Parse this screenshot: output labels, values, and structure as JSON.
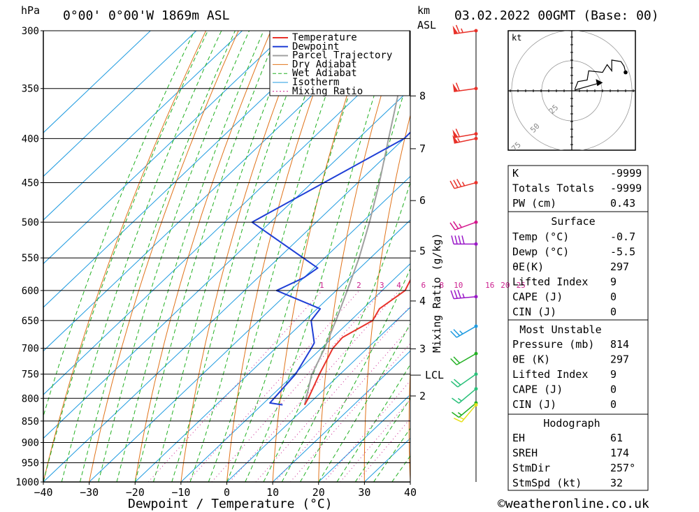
{
  "header": {
    "hpa_label": "hPa",
    "location": "0°00' 0°00'W  1869m  ASL",
    "km_label": "km",
    "asl_label": "ASL",
    "datetime": "03.02.2022  00GMT  (Base: 00)"
  },
  "footer": {
    "credit": "©weatheronline.co.uk"
  },
  "colors": {
    "temperature": "#e8322a",
    "dewpoint": "#1f3fd6",
    "parcel": "#a0a0a0",
    "dry_adiabat": "#e0731a",
    "wet_adiabat": "#22b022",
    "isotherm": "#1f9be0",
    "mixing_ratio": "#cc1f8f"
  },
  "chart_data": {
    "type": "skew-t",
    "xlabel": "Dewpoint / Temperature (°C)",
    "ylabel": "hPa",
    "xlim": [
      -40,
      40
    ],
    "ylim": [
      1000,
      300
    ],
    "x_ticks": [
      "−40",
      "−30",
      "−20",
      "−10",
      "0",
      "10",
      "20",
      "30",
      "40"
    ],
    "pressure_levels": [
      300,
      350,
      400,
      450,
      500,
      550,
      600,
      650,
      700,
      750,
      800,
      850,
      900,
      950,
      1000
    ],
    "km_ticks": [
      {
        "label": "8",
        "p": 357
      },
      {
        "label": "7",
        "p": 411
      },
      {
        "label": "6",
        "p": 472
      },
      {
        "label": "5",
        "p": 540
      },
      {
        "label": "4",
        "p": 617
      },
      {
        "label": "3",
        "p": 701
      },
      {
        "label": "2",
        "p": 795
      }
    ],
    "lcl": {
      "label": "LCL",
      "p": 752
    },
    "mixing_ratio_axis_label": "Mixing Ratio (g/kg)",
    "mixing_ratio_labels": [
      "1",
      "2",
      "3",
      "4",
      "6",
      "8",
      "10",
      "16",
      "20",
      "25"
    ],
    "mixing_ratio_values": [
      1,
      2,
      3,
      4,
      6,
      8,
      10,
      16,
      20,
      25
    ],
    "legend": [
      "Temperature",
      "Dewpoint",
      "Parcel Trajectory",
      "Dry Adiabat",
      "Wet Adiabat",
      "Isotherm",
      "Mixing Ratio"
    ],
    "temperature": [
      {
        "p": 814,
        "t": -0.7
      },
      {
        "p": 800,
        "t": -1.4
      },
      {
        "p": 750,
        "t": -4.5
      },
      {
        "p": 700,
        "t": -7.5
      },
      {
        "p": 680,
        "t": -7.9
      },
      {
        "p": 650,
        "t": -5.2
      },
      {
        "p": 630,
        "t": -6.4
      },
      {
        "p": 600,
        "t": -5.0
      },
      {
        "p": 580,
        "t": -6.5
      },
      {
        "p": 550,
        "t": -8.6
      },
      {
        "p": 500,
        "t": -13.8
      },
      {
        "p": 450,
        "t": -19.8
      },
      {
        "p": 400,
        "t": -26.6
      },
      {
        "p": 350,
        "t": -34.0
      },
      {
        "p": 300,
        "t": -43.2
      }
    ],
    "dewpoint": [
      {
        "p": 814,
        "t": -5.5
      },
      {
        "p": 810,
        "t": -8.7
      },
      {
        "p": 750,
        "t": -9.7
      },
      {
        "p": 700,
        "t": -12.2
      },
      {
        "p": 690,
        "t": -12.8
      },
      {
        "p": 650,
        "t": -18.6
      },
      {
        "p": 630,
        "t": -19.3
      },
      {
        "p": 600,
        "t": -33.0
      },
      {
        "p": 580,
        "t": -30.0
      },
      {
        "p": 565,
        "t": -29.2
      },
      {
        "p": 500,
        "t": -54.0
      },
      {
        "p": 400,
        "t": -40.0
      },
      {
        "p": 380,
        "t": -40.2
      },
      {
        "p": 350,
        "t": -44.5
      },
      {
        "p": 330,
        "t": -49.0
      },
      {
        "p": 300,
        "t": -54.0
      }
    ],
    "parcel": [
      {
        "p": 814,
        "t": -0.7
      },
      {
        "p": 752,
        "t": -6.0
      },
      {
        "p": 700,
        "t": -9.3
      },
      {
        "p": 650,
        "t": -13.2
      },
      {
        "p": 600,
        "t": -17.6
      },
      {
        "p": 550,
        "t": -22.5
      },
      {
        "p": 500,
        "t": -28.4
      },
      {
        "p": 450,
        "t": -35.3
      },
      {
        "p": 400,
        "t": -43.4
      },
      {
        "p": 350,
        "t": -52.5
      },
      {
        "p": 300,
        "t": -63.0
      }
    ],
    "wind_barbs": [
      {
        "p": 300,
        "dir": 262,
        "speed": 65,
        "color": "#e8322a"
      },
      {
        "p": 350,
        "dir": 262,
        "speed": 60,
        "color": "#e8322a"
      },
      {
        "p": 395,
        "dir": 260,
        "speed": 60,
        "color": "#e8322a"
      },
      {
        "p": 400,
        "dir": 258,
        "speed": 55,
        "color": "#e8322a"
      },
      {
        "p": 450,
        "dir": 255,
        "speed": 35,
        "color": "#e8322a"
      },
      {
        "p": 500,
        "dir": 250,
        "speed": 25,
        "color": "#d4148c"
      },
      {
        "p": 530,
        "dir": 270,
        "speed": 40,
        "color": "#9a18c8"
      },
      {
        "p": 610,
        "dir": 265,
        "speed": 35,
        "color": "#9a18c8"
      },
      {
        "p": 660,
        "dir": 240,
        "speed": 25,
        "color": "#1f9be0"
      },
      {
        "p": 710,
        "dir": 240,
        "speed": 20,
        "color": "#22b022"
      },
      {
        "p": 750,
        "dir": 235,
        "speed": 20,
        "color": "#2ac07a"
      },
      {
        "p": 780,
        "dir": 230,
        "speed": 15,
        "color": "#2ac07a"
      },
      {
        "p": 810,
        "dir": 230,
        "speed": 15,
        "color": "#22b022"
      },
      {
        "p": 814,
        "dir": 220,
        "speed": 15,
        "color": "#e6e01a"
      }
    ],
    "hodograph": {
      "unit_label": "kt",
      "ring_labels": [
        "25",
        "50",
        "75"
      ],
      "path": [
        [
          2,
          1
        ],
        [
          4,
          6
        ],
        [
          10,
          7
        ],
        [
          11,
          13
        ],
        [
          20,
          12
        ],
        [
          23,
          17
        ],
        [
          26,
          13
        ],
        [
          26,
          20
        ],
        [
          32,
          19
        ],
        [
          34,
          16
        ],
        [
          35,
          12
        ]
      ],
      "storm_motion": [
        12,
        4
      ]
    }
  },
  "indices": {
    "top": [
      {
        "label": "K",
        "value": "-9999"
      },
      {
        "label": "Totals Totals",
        "value": "-9999"
      },
      {
        "label": "PW (cm)",
        "value": "0.43"
      }
    ],
    "surface_title": "Surface",
    "surface": [
      {
        "label": "Temp (°C)",
        "value": "-0.7"
      },
      {
        "label": "Dewp (°C)",
        "value": "-5.5"
      },
      {
        "label": "θE(K)",
        "value": "297"
      },
      {
        "label": "Lifted Index",
        "value": "9"
      },
      {
        "label": "CAPE (J)",
        "value": "0"
      },
      {
        "label": "CIN (J)",
        "value": "0"
      }
    ],
    "unstable_title": "Most Unstable",
    "unstable": [
      {
        "label": "Pressure (mb)",
        "value": "814"
      },
      {
        "label": "θE (K)",
        "value": "297"
      },
      {
        "label": "Lifted Index",
        "value": "9"
      },
      {
        "label": "CAPE (J)",
        "value": "0"
      },
      {
        "label": "CIN (J)",
        "value": "0"
      }
    ],
    "hodo_title": "Hodograph",
    "hodo": [
      {
        "label": "EH",
        "value": "61"
      },
      {
        "label": "SREH",
        "value": "174"
      },
      {
        "label": "StmDir",
        "value": "257°"
      },
      {
        "label": "StmSpd (kt)",
        "value": "32"
      }
    ]
  }
}
